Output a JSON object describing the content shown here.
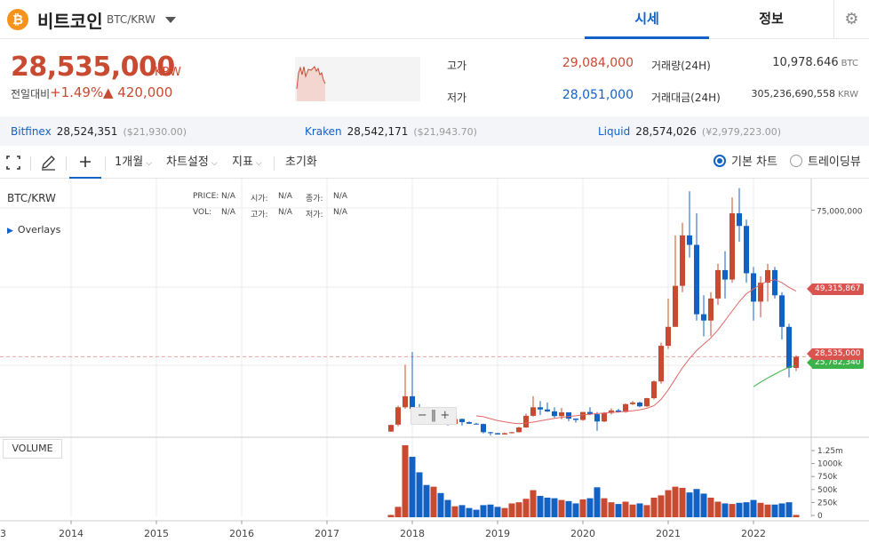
{
  "header": {
    "coin_symbol": "₿",
    "coin_name": "비트코인",
    "pair": "BTC/KRW",
    "tabs": [
      {
        "label": "시세",
        "active": true
      },
      {
        "label": "정보",
        "active": false
      }
    ],
    "settings_icon": "gear-icon"
  },
  "ticker": {
    "price": "28,535,000",
    "unit": "KRW",
    "change_label": "전일대비",
    "change_pct": "+1.49%",
    "change_amount": "▲ 420,000",
    "high_label": "고가",
    "high": "29,084,000",
    "low_label": "저가",
    "low": "28,051,000",
    "volume_label": "거래량(24H)",
    "volume": "10,978.646",
    "volume_unit": "BTC",
    "amount_label": "거래대금(24H)",
    "amount": "305,236,690,558",
    "amount_unit": "KRW",
    "colors": {
      "up": "#c84a31",
      "down": "#1261c4"
    }
  },
  "exchanges": [
    {
      "name": "Bitfinex",
      "price": "28,524,351",
      "alt": "($21,930.00)"
    },
    {
      "name": "Kraken",
      "price": "28,542,171",
      "alt": "($21,943.70)"
    },
    {
      "name": "Liquid",
      "price": "28,574,026",
      "alt": "(¥2,979,223.00)"
    }
  ],
  "toolbar": {
    "fullscreen_icon": "fullscreen-icon",
    "draw_icon": "pencil-icon",
    "crosshair_icon": "crosshair-icon",
    "interval": "1개월",
    "chart_settings": "차트설정",
    "indicators": "지표",
    "reset": "초기화",
    "basic_chart": "기본 차트",
    "tradingview": "트레이딩뷰"
  },
  "chart": {
    "symbol": "BTC/KRW",
    "overlays": "Overlays",
    "legend": {
      "price_label": "PRICE:",
      "price": "N/A",
      "open_label": "시가:",
      "open": "N/A",
      "close_label": "종가:",
      "close": "N/A",
      "vol_label": "VOL:",
      "vol": "N/A",
      "high_label": "고가:",
      "high": "N/A",
      "low_label": "저가:",
      "low": "N/A"
    },
    "volume_label": "VOLUME",
    "price_tick": "75,000,000",
    "ma_long_tag": "49,315,867",
    "last_price_tag": "28,535,000",
    "ma_short_tag": "25,782,340",
    "volume_ticks": [
      "1.25m",
      "1000k",
      "750k",
      "500k",
      "250k",
      "0"
    ],
    "x_ticks": [
      "3",
      "2014",
      "2015",
      "2016",
      "2017",
      "2018",
      "2019",
      "2020",
      "2021",
      "2022"
    ]
  },
  "chart_data": {
    "type": "candlestick",
    "interval": "1개월",
    "currency": "KRW",
    "ylim": [
      3000000,
      85000000
    ],
    "y_tick": 75000000,
    "last_price": 28535000,
    "ma_long_last": 49315867,
    "ma_short_last": 25782340,
    "candles": [
      {
        "t": "2017-10",
        "o": 4800000,
        "h": 7000000,
        "l": 4700000,
        "c": 6900000
      },
      {
        "t": "2017-11",
        "o": 7000000,
        "h": 13000000,
        "l": 6500000,
        "c": 12500000
      },
      {
        "t": "2017-12",
        "o": 12500000,
        "h": 26000000,
        "l": 12000000,
        "c": 16000000
      },
      {
        "t": "2018-01",
        "o": 16000000,
        "h": 30000000,
        "l": 11000000,
        "c": 12000000
      },
      {
        "t": "2018-02",
        "o": 12000000,
        "h": 13500000,
        "l": 7500000,
        "c": 11800000
      },
      {
        "t": "2018-03",
        "o": 11800000,
        "h": 12500000,
        "l": 7600000,
        "c": 7800000
      },
      {
        "t": "2018-04",
        "o": 7800000,
        "h": 10500000,
        "l": 7400000,
        "c": 10000000
      },
      {
        "t": "2018-05",
        "o": 10000000,
        "h": 10800000,
        "l": 8000000,
        "c": 8100000
      },
      {
        "t": "2018-06",
        "o": 8100000,
        "h": 8500000,
        "l": 6700000,
        "c": 7200000
      },
      {
        "t": "2018-07",
        "o": 7200000,
        "h": 9100000,
        "l": 6900000,
        "c": 8800000
      },
      {
        "t": "2018-08",
        "o": 8800000,
        "h": 8900000,
        "l": 6700000,
        "c": 7800000
      },
      {
        "t": "2018-09",
        "o": 7800000,
        "h": 8000000,
        "l": 7200000,
        "c": 7300000
      },
      {
        "t": "2018-10",
        "o": 7300000,
        "h": 7600000,
        "l": 7100000,
        "c": 7200000
      },
      {
        "t": "2018-11",
        "o": 7200000,
        "h": 7300000,
        "l": 4200000,
        "c": 4600000
      },
      {
        "t": "2018-12",
        "o": 4600000,
        "h": 4700000,
        "l": 3600000,
        "c": 4300000
      },
      {
        "t": "2019-01",
        "o": 4300000,
        "h": 4400000,
        "l": 3900000,
        "c": 3900000
      },
      {
        "t": "2019-02",
        "o": 3900000,
        "h": 4500000,
        "l": 3850000,
        "c": 4300000
      },
      {
        "t": "2019-03",
        "o": 4300000,
        "h": 4700000,
        "l": 4200000,
        "c": 4600000
      },
      {
        "t": "2019-04",
        "o": 4600000,
        "h": 6300000,
        "l": 4500000,
        "c": 6100000
      },
      {
        "t": "2019-05",
        "o": 6100000,
        "h": 10500000,
        "l": 6000000,
        "c": 9800000
      },
      {
        "t": "2019-06",
        "o": 9800000,
        "h": 16000000,
        "l": 9500000,
        "c": 12500000
      },
      {
        "t": "2019-07",
        "o": 12500000,
        "h": 14500000,
        "l": 10000000,
        "c": 11800000
      },
      {
        "t": "2019-08",
        "o": 11800000,
        "h": 14000000,
        "l": 11000000,
        "c": 11200000
      },
      {
        "t": "2019-09",
        "o": 11200000,
        "h": 12500000,
        "l": 9200000,
        "c": 9700000
      },
      {
        "t": "2019-10",
        "o": 9700000,
        "h": 12300000,
        "l": 8700000,
        "c": 10900000
      },
      {
        "t": "2019-11",
        "o": 10900000,
        "h": 10900000,
        "l": 8100000,
        "c": 8900000
      },
      {
        "t": "2019-12",
        "o": 8900000,
        "h": 9000000,
        "l": 7700000,
        "c": 8500000
      },
      {
        "t": "2020-01",
        "o": 8500000,
        "h": 11000000,
        "l": 8200000,
        "c": 11000000
      },
      {
        "t": "2020-02",
        "o": 11000000,
        "h": 12500000,
        "l": 10000000,
        "c": 10300000
      },
      {
        "t": "2020-03",
        "o": 10300000,
        "h": 11000000,
        "l": 5000000,
        "c": 8000000
      },
      {
        "t": "2020-04",
        "o": 8000000,
        "h": 11000000,
        "l": 7800000,
        "c": 10700000
      },
      {
        "t": "2020-05",
        "o": 10700000,
        "h": 12200000,
        "l": 10200000,
        "c": 11500000
      },
      {
        "t": "2020-06",
        "o": 11500000,
        "h": 12000000,
        "l": 10800000,
        "c": 11000000
      },
      {
        "t": "2020-07",
        "o": 11000000,
        "h": 13700000,
        "l": 10800000,
        "c": 13500000
      },
      {
        "t": "2020-08",
        "o": 13500000,
        "h": 14500000,
        "l": 13200000,
        "c": 14000000
      },
      {
        "t": "2020-09",
        "o": 14000000,
        "h": 14300000,
        "l": 12500000,
        "c": 12800000
      },
      {
        "t": "2020-10",
        "o": 12800000,
        "h": 15500000,
        "l": 12600000,
        "c": 15400000
      },
      {
        "t": "2020-11",
        "o": 15400000,
        "h": 21000000,
        "l": 15000000,
        "c": 20700000
      },
      {
        "t": "2020-12",
        "o": 20700000,
        "h": 33000000,
        "l": 20000000,
        "c": 32000000
      },
      {
        "t": "2021-01",
        "o": 32000000,
        "h": 47000000,
        "l": 31000000,
        "c": 38000000
      },
      {
        "t": "2021-02",
        "o": 38000000,
        "h": 67000000,
        "l": 38000000,
        "c": 51000000
      },
      {
        "t": "2021-03",
        "o": 51000000,
        "h": 71000000,
        "l": 49000000,
        "c": 67000000
      },
      {
        "t": "2021-04",
        "o": 67000000,
        "h": 81000000,
        "l": 60000000,
        "c": 64000000
      },
      {
        "t": "2021-05",
        "o": 64000000,
        "h": 74000000,
        "l": 40000000,
        "c": 42000000
      },
      {
        "t": "2021-06",
        "o": 42000000,
        "h": 48000000,
        "l": 35000000,
        "c": 40000000
      },
      {
        "t": "2021-07",
        "o": 40000000,
        "h": 49000000,
        "l": 35000000,
        "c": 47000000
      },
      {
        "t": "2021-08",
        "o": 47000000,
        "h": 58000000,
        "l": 45000000,
        "c": 56000000
      },
      {
        "t": "2021-09",
        "o": 56000000,
        "h": 62000000,
        "l": 47000000,
        "c": 53000000
      },
      {
        "t": "2021-10",
        "o": 53000000,
        "h": 79000000,
        "l": 52000000,
        "c": 74000000
      },
      {
        "t": "2021-11",
        "o": 74000000,
        "h": 82000000,
        "l": 65000000,
        "c": 70000000
      },
      {
        "t": "2021-12",
        "o": 70000000,
        "h": 72000000,
        "l": 52000000,
        "c": 55000000
      },
      {
        "t": "2022-01",
        "o": 55000000,
        "h": 57000000,
        "l": 40000000,
        "c": 46000000
      },
      {
        "t": "2022-02",
        "o": 46000000,
        "h": 54000000,
        "l": 41000000,
        "c": 52000000
      },
      {
        "t": "2022-03",
        "o": 52000000,
        "h": 58000000,
        "l": 46000000,
        "c": 56000000
      },
      {
        "t": "2022-04",
        "o": 56000000,
        "h": 57000000,
        "l": 47000000,
        "c": 48000000
      },
      {
        "t": "2022-05",
        "o": 48000000,
        "h": 49000000,
        "l": 34000000,
        "c": 38000000
      },
      {
        "t": "2022-06",
        "o": 38000000,
        "h": 39000000,
        "l": 22000000,
        "c": 25000000
      },
      {
        "t": "2022-07",
        "o": 25000000,
        "h": 29000000,
        "l": 24000000,
        "c": 28535000
      }
    ],
    "volume": [
      40,
      180,
      1250,
      1050,
      780,
      560,
      530,
      420,
      300,
      190,
      210,
      160,
      130,
      210,
      220,
      180,
      160,
      240,
      260,
      320,
      470,
      370,
      340,
      330,
      300,
      280,
      240,
      310,
      330,
      520,
      330,
      260,
      230,
      270,
      220,
      240,
      210,
      340,
      380,
      470,
      530,
      510,
      430,
      490,
      410,
      340,
      270,
      240,
      230,
      250,
      260,
      300,
      250,
      220,
      220,
      240,
      260,
      40
    ],
    "ma_long": [
      null,
      null,
      null,
      null,
      null,
      null,
      null,
      null,
      null,
      null,
      null,
      null,
      9800000,
      9500000,
      8900000,
      8300000,
      7900000,
      7500000,
      7300000,
      7500000,
      7800000,
      8200000,
      8600000,
      9000000,
      9300000,
      9600000,
      9800000,
      10100000,
      10300000,
      10500000,
      10700000,
      10900000,
      11000000,
      11200000,
      11400000,
      11700000,
      12200000,
      13000000,
      15000000,
      18000000,
      21500000,
      25000000,
      28000000,
      30500000,
      32500000,
      34500000,
      37000000,
      40000000,
      43000000,
      46000000,
      48500000,
      50000000,
      51500000,
      52500000,
      53000000,
      52000000,
      50500000,
      49315867
    ],
    "ma_short": [
      null,
      null,
      null,
      null,
      null,
      null,
      null,
      null,
      null,
      null,
      null,
      null,
      null,
      null,
      null,
      null,
      null,
      null,
      null,
      null,
      null,
      null,
      null,
      null,
      null,
      null,
      null,
      null,
      null,
      null,
      null,
      null,
      null,
      null,
      null,
      null,
      null,
      null,
      null,
      null,
      null,
      null,
      null,
      null,
      null,
      null,
      null,
      null,
      null,
      null,
      null,
      19000000,
      20500000,
      21800000,
      23000000,
      24200000,
      25200000,
      25782340
    ]
  }
}
